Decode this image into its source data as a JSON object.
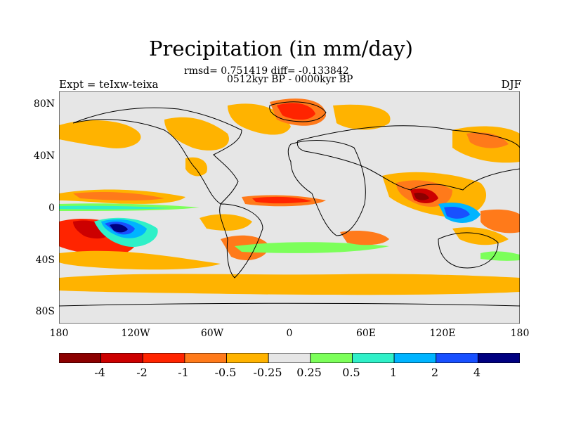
{
  "map": {
    "title": "Precipitation (in mm/day)",
    "stats": "rmsd= 0.751419 diff= -0.133842",
    "period": "0512kyr BP - 0000kyr BP",
    "experiment": "Expt = teIxw-teixa",
    "season": "DJF",
    "lat_labels": [
      "80N",
      "40N",
      "0",
      "40S",
      "80S"
    ],
    "lon_labels": [
      "180",
      "120W",
      "60W",
      "0",
      "60E",
      "120E",
      "180"
    ]
  },
  "colorbar": {
    "labels": [
      "-4",
      "-2",
      "-1",
      "-0.5",
      "-0.25",
      "0.25",
      "0.5",
      "1",
      "2",
      "4"
    ],
    "colors": [
      "#8b0000",
      "#cc0000",
      "#ff2400",
      "#ff7a1a",
      "#ffb300",
      "#e6e6e6",
      "#7cff5a",
      "#2ff0c8",
      "#00b4ff",
      "#1850ff",
      "#000080"
    ]
  },
  "colors": {
    "land_outline": "#000000",
    "background": "#e6e6e6"
  }
}
